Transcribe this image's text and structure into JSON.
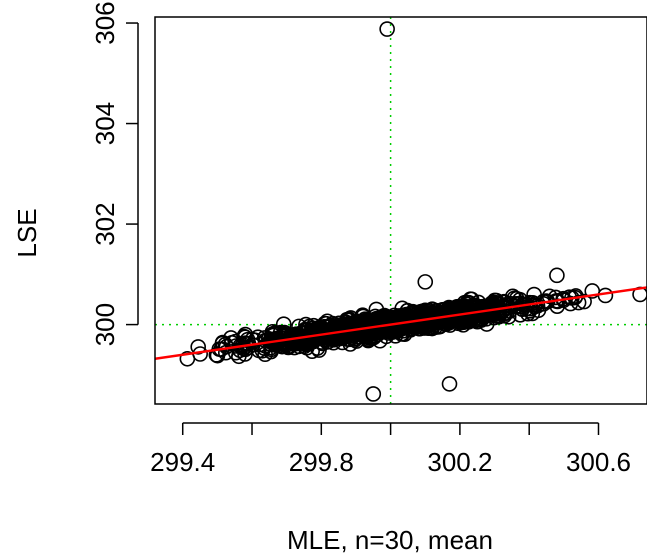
{
  "chart_data": {
    "type": "scatter",
    "title": "",
    "xlabel": "MLE, n=30, mean",
    "ylabel": "LSE",
    "xlim": [
      299.32,
      300.74
    ],
    "ylim": [
      298.42,
      306.12
    ],
    "xticks": [
      {
        "value": 299.4,
        "label": "299.4"
      },
      {
        "value": 299.6,
        "label": ""
      },
      {
        "value": 299.8,
        "label": "299.8"
      },
      {
        "value": 300.0,
        "label": ""
      },
      {
        "value": 300.2,
        "label": "300.2"
      },
      {
        "value": 300.4,
        "label": ""
      },
      {
        "value": 300.6,
        "label": "300.6"
      }
    ],
    "yticks": [
      {
        "value": 300,
        "label": "300"
      },
      {
        "value": 302,
        "label": "302"
      },
      {
        "value": 304,
        "label": "304"
      },
      {
        "value": 306,
        "label": "306"
      }
    ],
    "cloud": {
      "slope": 1.0,
      "spread": 0.2,
      "x_center": 300.0,
      "x_sd": 0.2,
      "x_range": [
        299.37,
        300.72
      ],
      "count": 1400
    },
    "outliers": [
      {
        "x": 299.99,
        "y": 305.88
      },
      {
        "x": 299.95,
        "y": 298.62
      },
      {
        "x": 300.17,
        "y": 298.82
      },
      {
        "x": 300.62,
        "y": 300.58
      },
      {
        "x": 300.72,
        "y": 300.6
      },
      {
        "x": 300.48,
        "y": 300.98
      },
      {
        "x": 300.1,
        "y": 300.85
      }
    ],
    "fit_line": {
      "intercept": 0.0,
      "slope": 1.0,
      "color": "#ff0000"
    },
    "reference_lines": {
      "x": 300.0,
      "y": 300.0,
      "color": "#00cd00",
      "style": "dotted"
    },
    "point_color": "#000000",
    "point_style": "open-circle",
    "grid": false,
    "legend": "none"
  }
}
